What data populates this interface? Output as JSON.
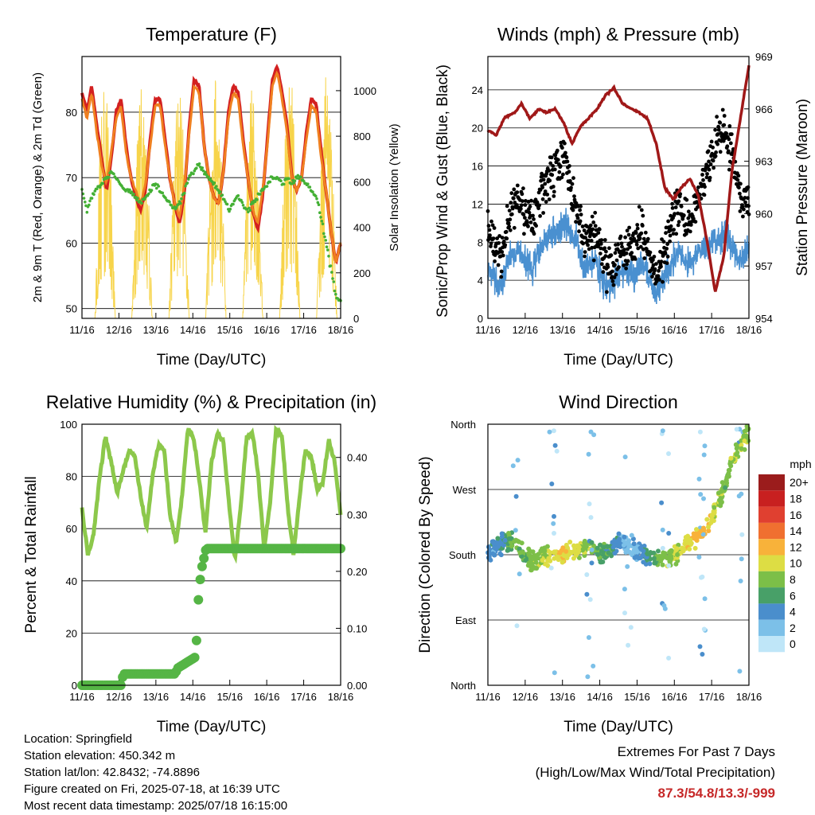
{
  "chart_data": [
    {
      "type": "line",
      "title": "Temperature (F)",
      "xlabel": "Time (Day/UTC)",
      "ylabel": "2m & 9m T (Red, Orange) & 2m Td (Green)",
      "y2label": "Solar Insolation (Yellow)",
      "x_ticks": [
        "11/16",
        "12/16",
        "13/16",
        "14/16",
        "15/16",
        "16/16",
        "17/16",
        "18/16"
      ],
      "ylim": [
        48.5,
        88.5
      ],
      "y_ticks": [
        50,
        60,
        70,
        80
      ],
      "y2lim": [
        0,
        1150
      ],
      "y2_ticks": [
        0,
        200,
        400,
        600,
        800,
        1000
      ],
      "grid": true,
      "series": [
        {
          "color": "#d32020",
          "values": [
            83,
            80,
            84,
            78,
            73,
            68,
            73,
            80,
            82,
            75,
            70,
            67,
            65,
            68,
            76,
            82,
            82,
            76,
            70,
            66,
            63,
            68,
            78,
            85,
            84,
            75,
            70,
            67,
            66,
            71,
            80,
            84,
            83,
            76,
            70,
            65,
            62,
            67,
            76,
            85,
            87,
            83,
            78,
            70,
            68,
            70,
            77,
            82,
            81,
            74,
            68,
            62,
            57,
            60
          ]
        },
        {
          "color": "#f08020",
          "values": [
            82,
            79,
            83,
            77,
            72,
            69,
            74,
            79,
            81,
            74,
            70,
            68,
            66,
            69,
            75,
            81,
            81,
            75,
            70,
            66,
            64,
            69,
            77,
            84,
            83,
            75,
            70,
            67,
            66,
            71,
            79,
            83,
            82,
            75,
            70,
            65,
            63,
            68,
            75,
            84,
            86,
            82,
            77,
            70,
            68,
            70,
            76,
            81,
            80,
            73,
            68,
            62,
            57,
            60
          ]
        },
        {
          "color": "#44b035",
          "values": [
            68,
            65,
            67,
            68,
            69,
            70,
            71,
            70,
            69,
            68,
            68,
            67,
            66,
            67,
            68,
            69,
            68,
            67,
            66,
            65,
            66,
            68,
            70,
            71,
            72,
            71,
            70,
            69,
            68,
            67,
            65,
            66,
            67,
            66,
            65,
            66,
            67,
            68,
            69,
            70,
            70,
            69,
            70,
            69,
            70,
            70,
            69,
            68,
            67,
            64,
            60,
            56,
            52,
            51
          ]
        }
      ],
      "solar_peaks": [
        1040,
        1050,
        1010,
        1060,
        1040,
        1090,
        1080,
        640
      ]
    },
    {
      "type": "scatter",
      "title": "Winds (mph) & Pressure (mb)",
      "xlabel": "Time (Day/UTC)",
      "ylabel": "Sonic/Prop Wind & Gust (Blue, Black)",
      "y2label": "Station Pressure (Maroon)",
      "x_ticks": [
        "11/16",
        "12/16",
        "13/16",
        "14/16",
        "15/16",
        "16/16",
        "17/16",
        "18/16"
      ],
      "ylim": [
        0,
        27.5
      ],
      "y_ticks": [
        0,
        4,
        8,
        12,
        16,
        20,
        24
      ],
      "y2lim": [
        954,
        969
      ],
      "y2_ticks": [
        954,
        957,
        960,
        963,
        966,
        969
      ],
      "grid": true,
      "wind_avg": [
        5,
        4,
        3,
        6,
        7,
        7,
        6,
        5,
        7,
        8,
        9,
        9,
        10,
        9,
        8,
        5,
        6,
        6,
        4,
        3,
        4,
        5,
        5,
        4,
        6,
        5,
        3,
        3,
        5,
        6,
        7,
        6,
        6,
        7,
        7,
        8,
        8,
        9,
        8,
        7,
        6,
        7
      ],
      "gust_avg": [
        10,
        8,
        6,
        10,
        12,
        12,
        11,
        10,
        12,
        14,
        15,
        16,
        17,
        14,
        11,
        8,
        9,
        9,
        7,
        5,
        6,
        7,
        8,
        7,
        10,
        8,
        5,
        5,
        8,
        10,
        12,
        10,
        10,
        13,
        14,
        17,
        19,
        20,
        18,
        15,
        12,
        12
      ],
      "pressure": [
        964.8,
        964.5,
        965.5,
        965.7,
        966.3,
        965.4,
        966.0,
        965.8,
        966.0,
        965.2,
        964.0,
        965.0,
        965.5,
        966.0,
        966.8,
        967.2,
        966.3,
        966.0,
        965.8,
        965.4,
        964.0,
        961.5,
        960.8,
        961.5,
        962.0,
        961.0,
        958.5,
        955.5,
        957.5,
        962.5,
        965.5,
        968.5
      ]
    },
    {
      "type": "line",
      "title": "Relative Humidity (%) & Precipitation (in)",
      "xlabel": "Time (Day/UTC)",
      "ylabel": "Percent & Total Rainfall",
      "x_ticks": [
        "11/16",
        "12/16",
        "13/16",
        "14/16",
        "15/16",
        "16/16",
        "17/16",
        "18/16"
      ],
      "ylim": [
        0,
        100
      ],
      "y_ticks": [
        0,
        20,
        40,
        60,
        80,
        100
      ],
      "y2lim": [
        0,
        0.4583
      ],
      "y2_ticks": [
        "0.00",
        "0.10",
        "0.20",
        "0.30",
        "0.40"
      ],
      "grid": true,
      "humidity": [
        68,
        50,
        58,
        80,
        95,
        85,
        74,
        82,
        90,
        88,
        72,
        60,
        80,
        92,
        90,
        65,
        55,
        72,
        98,
        95,
        78,
        58,
        85,
        96,
        94,
        70,
        48,
        68,
        95,
        97,
        80,
        52,
        70,
        98,
        96,
        68,
        50,
        72,
        90,
        88,
        75,
        78,
        94,
        85,
        65
      ],
      "precip_x": [
        0.0,
        0.15,
        0.16,
        0.36,
        0.37,
        0.44,
        0.45,
        0.46,
        0.47,
        0.48,
        1.0
      ],
      "precip": [
        0.0,
        0.0,
        0.02,
        0.02,
        0.03,
        0.05,
        0.15,
        0.2,
        0.22,
        0.24,
        0.24
      ]
    },
    {
      "type": "scatter",
      "title": "Wind Direction",
      "xlabel": "Time (Day/UTC)",
      "ylabel": "Direction (Colored By Speed)",
      "x_ticks": [
        "11/16",
        "12/16",
        "13/16",
        "14/16",
        "15/16",
        "16/16",
        "17/16",
        "18/16"
      ],
      "y_ticks": [
        "North",
        "East",
        "South",
        "West",
        "North"
      ],
      "ylim": [
        0,
        360
      ],
      "grid": true,
      "legend_title": "mph",
      "legend_labels": [
        "0",
        "2",
        "4",
        "6",
        "8",
        "10",
        "12",
        "14",
        "16",
        "18",
        "20+"
      ],
      "legend_colors": [
        "#bfe6f8",
        "#7cc0e8",
        "#4a8ecc",
        "#48a068",
        "#7cbf48",
        "#dddd44",
        "#f8b23a",
        "#f07030",
        "#e04030",
        "#c82020",
        "#9b1c1c"
      ],
      "direction_trend": [
        180,
        190,
        200,
        195,
        175,
        170,
        180,
        175,
        180,
        185,
        190,
        190,
        180,
        185,
        200,
        195,
        185,
        180,
        175,
        170,
        180,
        190,
        200,
        210,
        230,
        260,
        300,
        330,
        350
      ],
      "speed_trend": [
        3,
        4,
        6,
        8,
        7,
        8,
        9,
        10,
        11,
        10,
        9,
        8,
        7,
        6,
        4,
        2,
        3,
        5,
        7,
        8,
        9,
        10,
        11,
        12,
        10,
        8,
        8,
        9,
        8
      ]
    }
  ],
  "info": {
    "location": "Location: Springfield",
    "elevation": "Station elevation: 450.342 m",
    "latlon": "Station lat/lon: 42.8432; -74.8896",
    "created": "Figure created on Fri, 2025-07-18, at 16:39 UTC",
    "timestamp": "Most recent data timestamp: 2025/07/18 16:15:00"
  },
  "extremes": {
    "title": "Extremes For Past 7 Days",
    "subtitle": "(High/Low/Max Wind/Total Precipitation)",
    "values": "87.3/54.8/13.3/-999"
  }
}
